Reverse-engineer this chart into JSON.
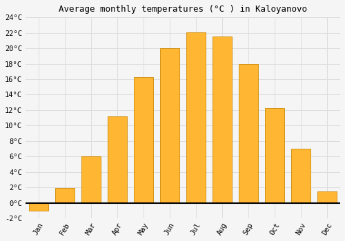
{
  "title": "Average monthly temperatures (°C ) in Kaloyanovo",
  "months": [
    "Jan",
    "Feb",
    "Mar",
    "Apr",
    "May",
    "Jun",
    "Jul",
    "Aug",
    "Sep",
    "Oct",
    "Nov",
    "Dec"
  ],
  "values": [
    -1.0,
    1.9,
    6.0,
    11.2,
    16.3,
    20.0,
    22.1,
    21.5,
    18.0,
    12.3,
    7.0,
    1.5
  ],
  "bar_color": "#FFB733",
  "bar_edge_color": "#CC8800",
  "background_color": "#F5F5F5",
  "grid_color": "#DDDDDD",
  "ylim": [
    -2,
    24
  ],
  "yticks": [
    0,
    2,
    4,
    6,
    8,
    10,
    12,
    14,
    16,
    18,
    20,
    22,
    24
  ],
  "ylim_extra": -2,
  "title_fontsize": 9,
  "tick_fontsize": 7.5,
  "font_family": "monospace"
}
